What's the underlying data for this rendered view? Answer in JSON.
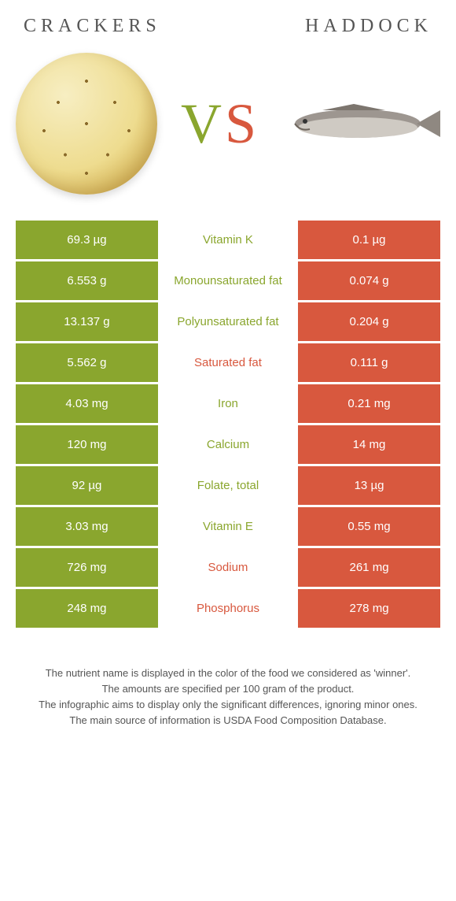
{
  "titles": {
    "left": "Crackers",
    "right": "Haddock"
  },
  "colors": {
    "left": "#8aa62e",
    "right": "#d8583e"
  },
  "rows": [
    {
      "left": "69.3 µg",
      "label": "Vitamin K",
      "right": "0.1 µg",
      "winner": "left"
    },
    {
      "left": "6.553 g",
      "label": "Monounsaturated fat",
      "right": "0.074 g",
      "winner": "left"
    },
    {
      "left": "13.137 g",
      "label": "Polyunsaturated fat",
      "right": "0.204 g",
      "winner": "left"
    },
    {
      "left": "5.562 g",
      "label": "Saturated fat",
      "right": "0.111 g",
      "winner": "right"
    },
    {
      "left": "4.03 mg",
      "label": "Iron",
      "right": "0.21 mg",
      "winner": "left"
    },
    {
      "left": "120 mg",
      "label": "Calcium",
      "right": "14 mg",
      "winner": "left"
    },
    {
      "left": "92 µg",
      "label": "Folate, total",
      "right": "13 µg",
      "winner": "left"
    },
    {
      "left": "3.03 mg",
      "label": "Vitamin E",
      "right": "0.55 mg",
      "winner": "left"
    },
    {
      "left": "726 mg",
      "label": "Sodium",
      "right": "261 mg",
      "winner": "right"
    },
    {
      "left": "248 mg",
      "label": "Phosphorus",
      "right": "278 mg",
      "winner": "right"
    }
  ],
  "footnotes": [
    "The nutrient name is displayed in the color of the food we considered as 'winner'.",
    "The amounts are specified per 100 gram of the product.",
    "The infographic aims to display only the significant differences, ignoring minor ones.",
    "The main source of information is USDA Food Composition Database."
  ]
}
